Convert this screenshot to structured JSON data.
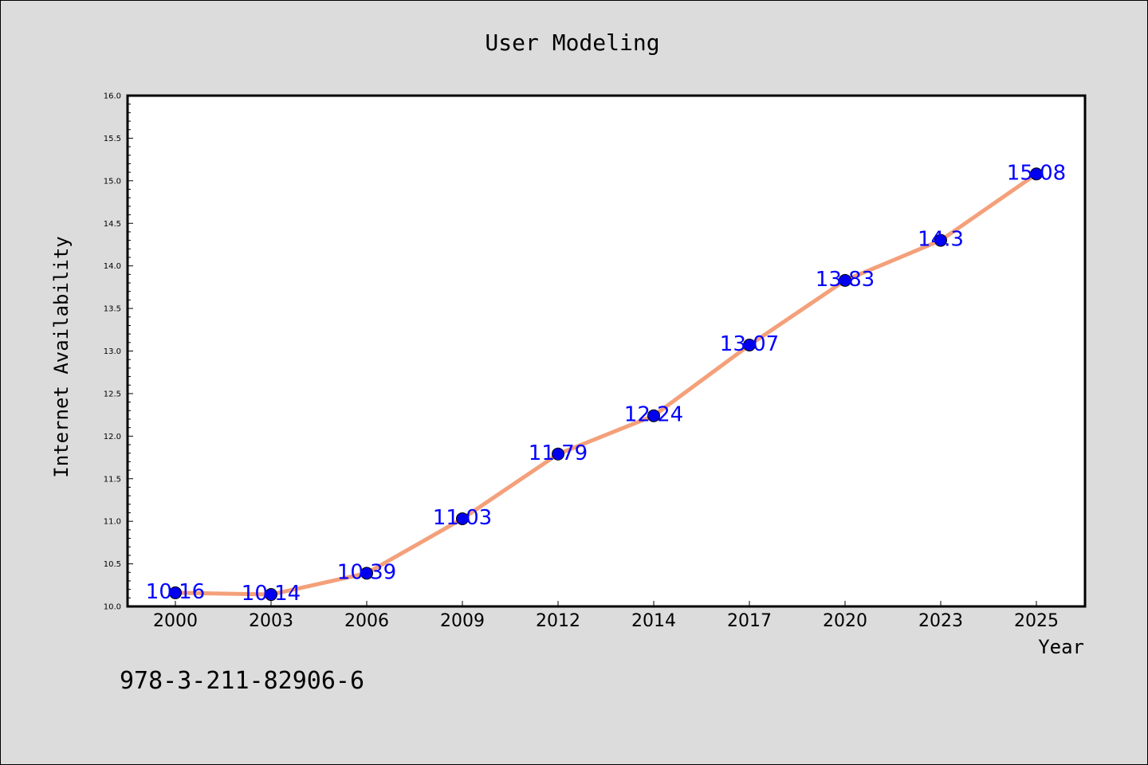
{
  "chart_data": {
    "type": "line",
    "title": "User Modeling",
    "xlabel": "Year",
    "ylabel": "Internet Availability",
    "categories": [
      "2000",
      "2003",
      "2006",
      "2009",
      "2012",
      "2014",
      "2017",
      "2020",
      "2023",
      "2025"
    ],
    "series": [
      {
        "values": [
          10.16,
          10.14,
          10.39,
          11.03,
          11.79,
          12.24,
          13.07,
          13.83,
          14.3,
          15.08
        ]
      }
    ],
    "data_labels": [
      "10.16",
      "10.14",
      "10.39",
      "11.03",
      "11.79",
      "12.24",
      "13.07",
      "13.83",
      "14.3",
      "15.08"
    ],
    "ylim": [
      10.0,
      16.0
    ],
    "yticks": [
      "10.0",
      "10.5",
      "11.0",
      "11.5",
      "12.0",
      "12.5",
      "13.0",
      "13.5",
      "14.0",
      "14.5",
      "15.0",
      "15.5",
      "16.0"
    ],
    "grid": false,
    "legend": "none",
    "colors": {
      "line": "#f4a07a",
      "marker": "#0000ee",
      "label": "#0000ff",
      "background": "#dcdcdc",
      "plot_background": "#ffffff"
    }
  },
  "footnote": "978-3-211-82906-6"
}
